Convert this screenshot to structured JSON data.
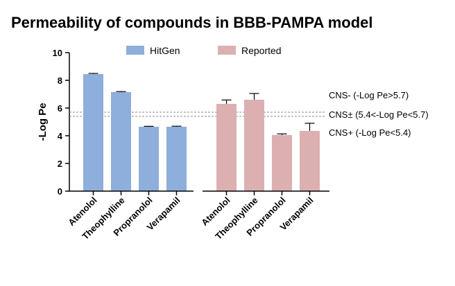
{
  "chart_data": {
    "type": "bar",
    "title": "Permeability of compounds in BBB-PAMPA model",
    "ylabel": "-Log Pe",
    "xlabel": "",
    "ylim": [
      0,
      10
    ],
    "yticks": [
      0,
      2,
      4,
      6,
      8,
      10
    ],
    "grid": false,
    "legend_position": "top",
    "groups": [
      {
        "name": "HitGen",
        "color": "#8eaedb",
        "categories": [
          "Atenolol",
          "Theophylline",
          "Propranolol",
          "Verapamil"
        ],
        "values": [
          8.45,
          7.15,
          4.65,
          4.65
        ],
        "errors": [
          0.05,
          0.04,
          0.03,
          0.04
        ]
      },
      {
        "name": "Reported",
        "color": "#dcb0b0",
        "categories": [
          "Atenolol",
          "Theophylline",
          "Propranolol",
          "Verapamil"
        ],
        "values": [
          6.3,
          6.6,
          4.05,
          4.35
        ],
        "errors": [
          0.28,
          0.45,
          0.08,
          0.55
        ]
      }
    ],
    "reference_lines": [
      {
        "y": 5.7,
        "label": "CNS- (-Log Pe>5.7)"
      },
      {
        "y": 5.4,
        "label": "CNS± (5.4<-Log Pe<5.7)"
      }
    ],
    "annotations": [
      "CNS+ (-Log Pe<5.4)"
    ]
  }
}
